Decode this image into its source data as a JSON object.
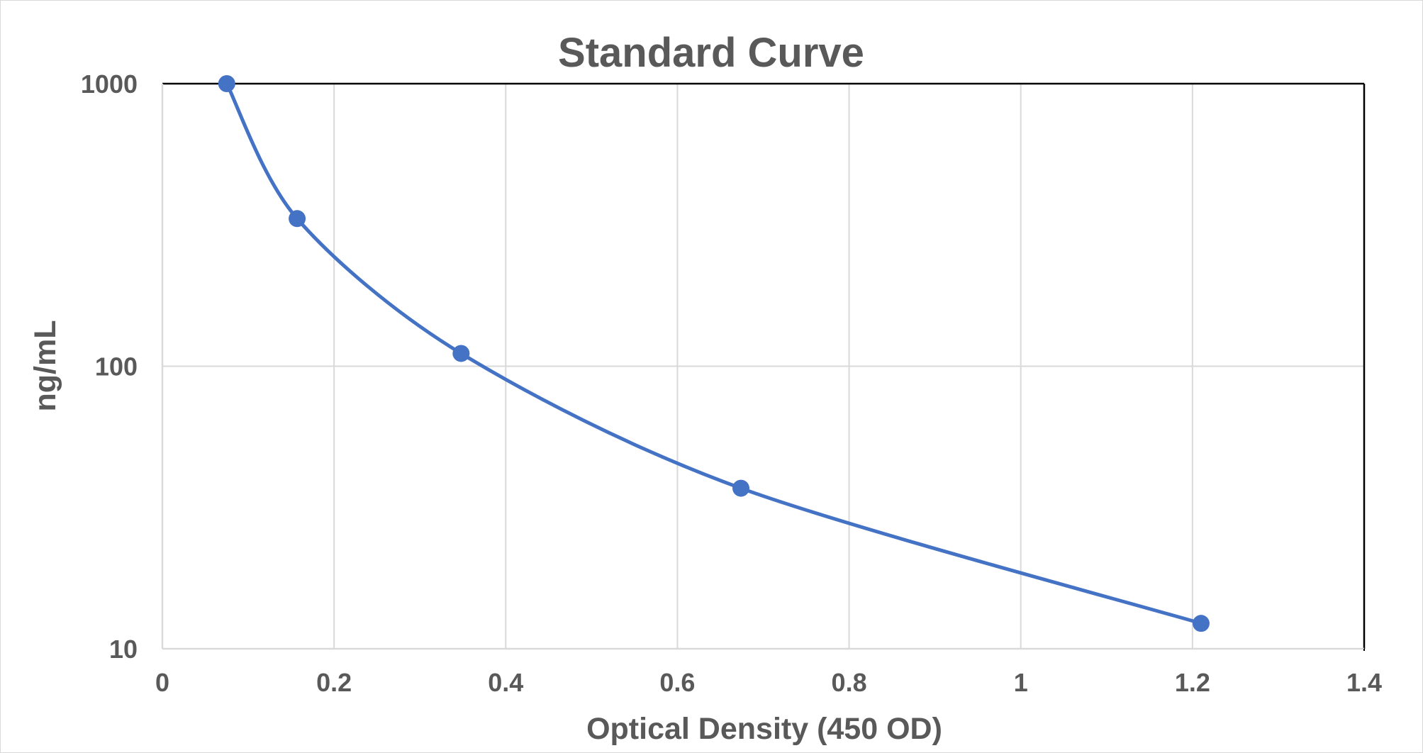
{
  "chart_data": {
    "type": "scatter",
    "title": "Standard Curve",
    "xlabel": "Optical Density (450 OD)",
    "ylabel": "ng/mL",
    "xlim": [
      0,
      1.4
    ],
    "ylim": [
      10,
      1000
    ],
    "y_scale": "log",
    "grid": true,
    "smooth_line": true,
    "x_ticks": [
      "0",
      "0.2",
      "0.4",
      "0.6",
      "0.8",
      "1",
      "1.2",
      "1.4"
    ],
    "y_ticks": [
      "10",
      "100",
      "1000"
    ],
    "series": [
      {
        "x": [
          0.075,
          0.157,
          0.348,
          0.674,
          1.21
        ],
        "y": [
          1000,
          333,
          111,
          37,
          12.3
        ]
      }
    ],
    "colors": {
      "series": "#4472c4",
      "grid": "#d9d9d9",
      "axis": "#000000",
      "text": "#595959"
    }
  }
}
